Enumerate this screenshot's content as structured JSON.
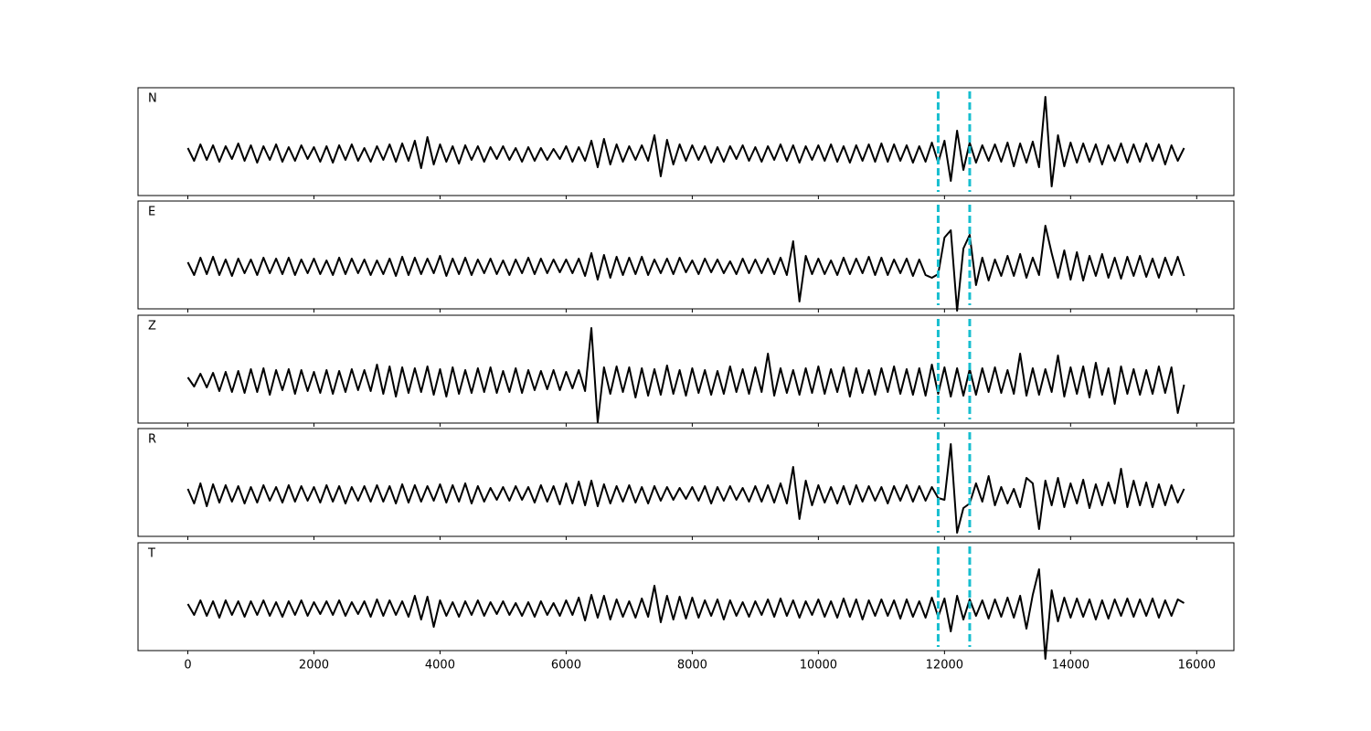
{
  "chart_data": {
    "type": "line",
    "x": [
      0,
      100,
      200,
      300,
      400,
      500,
      600,
      700,
      800,
      900,
      1000,
      1100,
      1200,
      1300,
      1400,
      1500,
      1600,
      1700,
      1800,
      1900,
      2000,
      2100,
      2200,
      2300,
      2400,
      2500,
      2600,
      2700,
      2800,
      2900,
      3000,
      3100,
      3200,
      3300,
      3400,
      3500,
      3600,
      3700,
      3800,
      3900,
      4000,
      4100,
      4200,
      4300,
      4400,
      4500,
      4600,
      4700,
      4800,
      4900,
      5000,
      5100,
      5200,
      5300,
      5400,
      5500,
      5600,
      5700,
      5800,
      5900,
      6000,
      6100,
      6200,
      6300,
      6400,
      6500,
      6600,
      6700,
      6800,
      6900,
      7000,
      7100,
      7200,
      7300,
      7400,
      7500,
      7600,
      7700,
      7800,
      7900,
      8000,
      8100,
      8200,
      8300,
      8400,
      8500,
      8600,
      8700,
      8800,
      8900,
      9000,
      9100,
      9200,
      9300,
      9400,
      9500,
      9600,
      9700,
      9800,
      9900,
      10000,
      10100,
      10200,
      10300,
      10400,
      10500,
      10600,
      10700,
      10800,
      10900,
      11000,
      11100,
      11200,
      11300,
      11400,
      11500,
      11600,
      11700,
      11800,
      11900,
      12000,
      12100,
      12200,
      12300,
      12400,
      12500,
      12600,
      12700,
      12800,
      12900,
      13000,
      13100,
      13200,
      13300,
      13400,
      13500,
      13600,
      13700,
      13800,
      13900,
      14000,
      14100,
      14200,
      14300,
      14400,
      14500,
      14600,
      14700,
      14800,
      14900,
      15000,
      15100,
      15200,
      15300,
      15400,
      15500,
      15600,
      15700,
      15800
    ],
    "xlim": [
      -790,
      16590
    ],
    "xticks": [
      0,
      2000,
      4000,
      6000,
      8000,
      10000,
      12000,
      14000,
      16000
    ],
    "ylim": [
      -46,
      72
    ],
    "series": [
      {
        "name": "N",
        "color": "#000000",
        "values": [
          6,
          -8,
          10,
          -7,
          9,
          -9,
          8,
          -6,
          11,
          -8,
          9,
          -10,
          8,
          -7,
          10,
          -9,
          7,
          -8,
          9,
          -6,
          7,
          -9,
          8,
          -10,
          9,
          -7,
          10,
          -8,
          6,
          -9,
          8,
          -7,
          10,
          -9,
          11,
          -8,
          14,
          -16,
          18,
          -12,
          10,
          -9,
          8,
          -11,
          9,
          -7,
          8,
          -9,
          7,
          -6,
          8,
          -7,
          6,
          -9,
          7,
          -8,
          6,
          -7,
          5,
          -6,
          8,
          -9,
          7,
          -8,
          14,
          -15,
          16,
          -12,
          10,
          -9,
          8,
          -7,
          9,
          -8,
          20,
          -25,
          15,
          -12,
          10,
          -8,
          9,
          -7,
          8,
          -10,
          7,
          -9,
          8,
          -6,
          9,
          -8,
          7,
          -9,
          8,
          -7,
          10,
          -8,
          9,
          -10,
          8,
          -7,
          9,
          -8,
          10,
          -9,
          8,
          -10,
          9,
          -8,
          10,
          -9,
          11,
          -9,
          10,
          -8,
          9,
          -10,
          8,
          -9,
          12,
          -10,
          14,
          -30,
          25,
          -18,
          12,
          -10,
          9,
          -8,
          10,
          -9,
          12,
          -14,
          11,
          -10,
          13,
          -15,
          62,
          -36,
          20,
          -14,
          12,
          -10,
          11,
          -9,
          10,
          -12,
          9,
          -8,
          11,
          -10,
          10,
          -9,
          11,
          -8,
          10,
          -12,
          9,
          -8,
          6
        ]
      },
      {
        "name": "E",
        "color": "#000000",
        "values": [
          5,
          -9,
          10,
          -8,
          11,
          -9,
          8,
          -10,
          9,
          -7,
          8,
          -9,
          10,
          -7,
          9,
          -8,
          10,
          -9,
          8,
          -7,
          9,
          -8,
          7,
          -9,
          10,
          -8,
          9,
          -7,
          8,
          -9,
          7,
          -8,
          9,
          -10,
          11,
          -9,
          10,
          -8,
          9,
          -7,
          12,
          -10,
          9,
          -8,
          10,
          -9,
          8,
          -7,
          9,
          -8,
          7,
          -9,
          8,
          -7,
          10,
          -8,
          9,
          -7,
          8,
          -6,
          8,
          -7,
          9,
          -10,
          15,
          -14,
          13,
          -12,
          11,
          -9,
          10,
          -8,
          11,
          -9,
          8,
          -7,
          9,
          -8,
          10,
          -6,
          7,
          -8,
          9,
          -6,
          8,
          -7,
          6,
          -8,
          9,
          -7,
          8,
          -7,
          9,
          -8,
          10,
          -9,
          28,
          -38,
          12,
          -8,
          9,
          -8,
          7,
          -9,
          10,
          -8,
          9,
          -7,
          11,
          -9,
          10,
          -9,
          8,
          -7,
          9,
          -10,
          8,
          -9,
          -12,
          -8,
          32,
          40,
          -48,
          20,
          35,
          -20,
          10,
          -15,
          8,
          -10,
          12,
          -10,
          14,
          -12,
          10,
          -9,
          45,
          15,
          -12,
          18,
          -14,
          16,
          -15,
          12,
          -10,
          14,
          -12,
          10,
          -13,
          11,
          -10,
          12,
          -11,
          9,
          -12,
          10,
          -9,
          11,
          -10
        ]
      },
      {
        "name": "Z",
        "color": "#000000",
        "values": [
          4,
          -6,
          8,
          -7,
          9,
          -11,
          10,
          -12,
          11,
          -13,
          13,
          -12,
          14,
          -15,
          12,
          -10,
          13,
          -14,
          12,
          -11,
          10,
          -13,
          12,
          -14,
          11,
          -12,
          13,
          -10,
          12,
          -11,
          18,
          -14,
          16,
          -17,
          15,
          -13,
          14,
          -12,
          16,
          -15,
          13,
          -17,
          15,
          -14,
          12,
          -13,
          14,
          -12,
          15,
          -13,
          11,
          -12,
          14,
          -13,
          12,
          -10,
          11,
          -9,
          12,
          -10,
          10,
          -8,
          12,
          -11,
          58,
          -45,
          15,
          -14,
          16,
          -12,
          15,
          -18,
          14,
          -16,
          13,
          -15,
          17,
          -14,
          12,
          -16,
          14,
          -13,
          12,
          -15,
          11,
          -14,
          16,
          -12,
          13,
          -14,
          15,
          -12,
          30,
          -16,
          14,
          -13,
          12,
          -15,
          14,
          -13,
          16,
          -14,
          13,
          -12,
          15,
          -17,
          14,
          -13,
          12,
          -15,
          14,
          -12,
          16,
          -14,
          13,
          -15,
          14,
          -16,
          18,
          -14,
          15,
          -17,
          14,
          -16,
          13,
          -15,
          14,
          -12,
          15,
          -13,
          12,
          -14,
          30,
          -16,
          14,
          -15,
          13,
          -12,
          28,
          -17,
          15,
          -14,
          16,
          -18,
          20,
          -15,
          14,
          -25,
          16,
          -14,
          13,
          -15,
          12,
          -14,
          16,
          -13,
          15,
          -35,
          -4
        ]
      },
      {
        "name": "R",
        "color": "#000000",
        "values": [
          6,
          -10,
          12,
          -13,
          11,
          -9,
          10,
          -8,
          9,
          -10,
          8,
          -9,
          10,
          -7,
          8,
          -9,
          10,
          -8,
          9,
          -7,
          8,
          -9,
          10,
          -8,
          9,
          -10,
          8,
          -7,
          9,
          -8,
          10,
          -8,
          9,
          -10,
          11,
          -9,
          10,
          -8,
          9,
          -7,
          11,
          -9,
          10,
          -8,
          12,
          -10,
          9,
          -8,
          7,
          -6,
          8,
          -7,
          9,
          -6,
          8,
          -9,
          10,
          -8,
          9,
          -11,
          12,
          -10,
          14,
          -12,
          15,
          -13,
          11,
          -10,
          9,
          -8,
          10,
          -9,
          8,
          -10,
          9,
          -7,
          8,
          -6,
          7,
          -5,
          8,
          -7,
          9,
          -10,
          8,
          -7,
          9,
          -6,
          7,
          -8,
          9,
          -8,
          10,
          -9,
          12,
          -10,
          30,
          -27,
          15,
          -12,
          10,
          -9,
          8,
          -10,
          9,
          -11,
          10,
          -8,
          9,
          -7,
          8,
          -10,
          9,
          -7,
          10,
          -8,
          9,
          -7,
          8,
          -4,
          -6,
          55,
          -42,
          -15,
          -10,
          12,
          -8,
          20,
          -12,
          8,
          -10,
          6,
          -14,
          18,
          12,
          -38,
          15,
          -12,
          18,
          -14,
          12,
          -10,
          16,
          -15,
          11,
          -12,
          13,
          -10,
          28,
          -14,
          15,
          -12,
          13,
          -14,
          11,
          -12,
          10,
          -9,
          6
        ]
      },
      {
        "name": "T",
        "color": "#000000",
        "values": [
          5,
          -7,
          9,
          -8,
          8,
          -10,
          9,
          -7,
          8,
          -9,
          8,
          -7,
          9,
          -8,
          7,
          -9,
          8,
          -7,
          9,
          -8,
          7,
          -6,
          8,
          -7,
          9,
          -8,
          7,
          -6,
          8,
          -9,
          10,
          -8,
          9,
          -7,
          8,
          -9,
          14,
          -12,
          13,
          -20,
          9,
          -8,
          7,
          -9,
          8,
          -7,
          9,
          -8,
          7,
          -6,
          8,
          -7,
          6,
          -8,
          7,
          -9,
          8,
          -7,
          6,
          -8,
          9,
          -7,
          12,
          -13,
          15,
          -10,
          14,
          -12,
          10,
          -9,
          8,
          -10,
          11,
          -9,
          25,
          -15,
          14,
          -12,
          13,
          -11,
          12,
          -10,
          9,
          -8,
          10,
          -12,
          9,
          -8,
          7,
          -9,
          8,
          -7,
          10,
          -9,
          11,
          -8,
          9,
          -10,
          8,
          -7,
          10,
          -9,
          8,
          -10,
          11,
          -9,
          10,
          -12,
          9,
          -8,
          10,
          -8,
          9,
          -11,
          10,
          -9,
          8,
          -10,
          12,
          -9,
          11,
          -25,
          14,
          -12,
          10,
          -8,
          9,
          -11,
          10,
          -9,
          12,
          -10,
          14,
          -22,
          15,
          43,
          -55,
          20,
          -14,
          12,
          -10,
          11,
          -9,
          10,
          -12,
          9,
          -11,
          10,
          -8,
          11,
          -9,
          10,
          -8,
          11,
          -10,
          9,
          -8,
          10,
          6
        ]
      }
    ],
    "vlines": {
      "color": "#17becf",
      "style": "dashed",
      "x": [
        11900,
        12400
      ]
    }
  }
}
